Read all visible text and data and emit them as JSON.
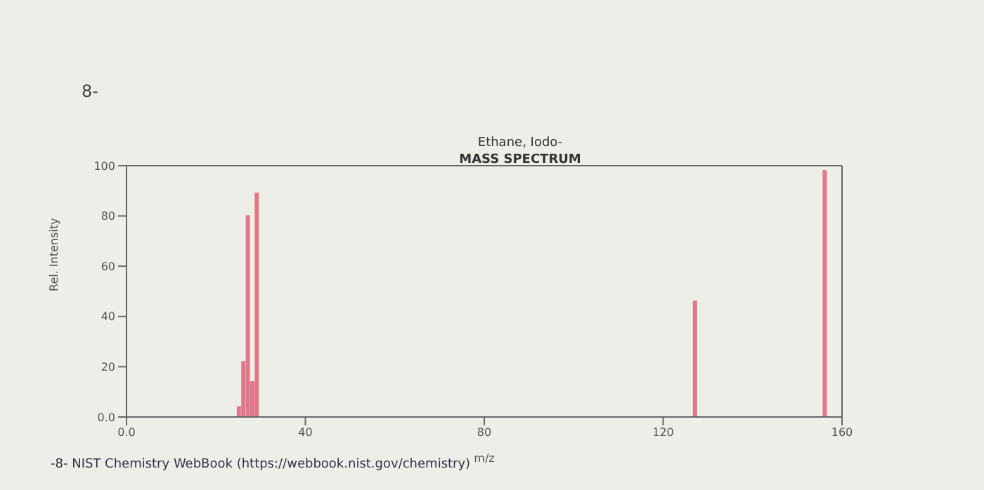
{
  "chart_data": {
    "type": "bar",
    "title": "Ethane, Iodo-",
    "subtitle": "MASS SPECTRUM",
    "xlabel": "m/z",
    "ylabel": "Rel. Intensity",
    "annotations": [
      "8-",
      "-8- NIST Chemistry WebBook (https://webbook.nist.gov/chemistry)"
    ],
    "x": [
      25,
      26,
      27,
      28,
      29,
      127,
      156
    ],
    "series": [
      {
        "color": "#e0788a",
        "values": [
          4,
          22,
          80,
          14,
          89,
          46,
          98
        ]
      }
    ],
    "xlim": [
      0,
      160
    ],
    "xticks": [
      {
        "value": 0,
        "label": "0.0"
      },
      40,
      80,
      120,
      160
    ],
    "ylim": [
      0,
      100
    ],
    "yticks": [
      {
        "value": 0,
        "label": "0.0"
      },
      20,
      40,
      60,
      80,
      100
    ],
    "grid": false,
    "legend": false
  }
}
